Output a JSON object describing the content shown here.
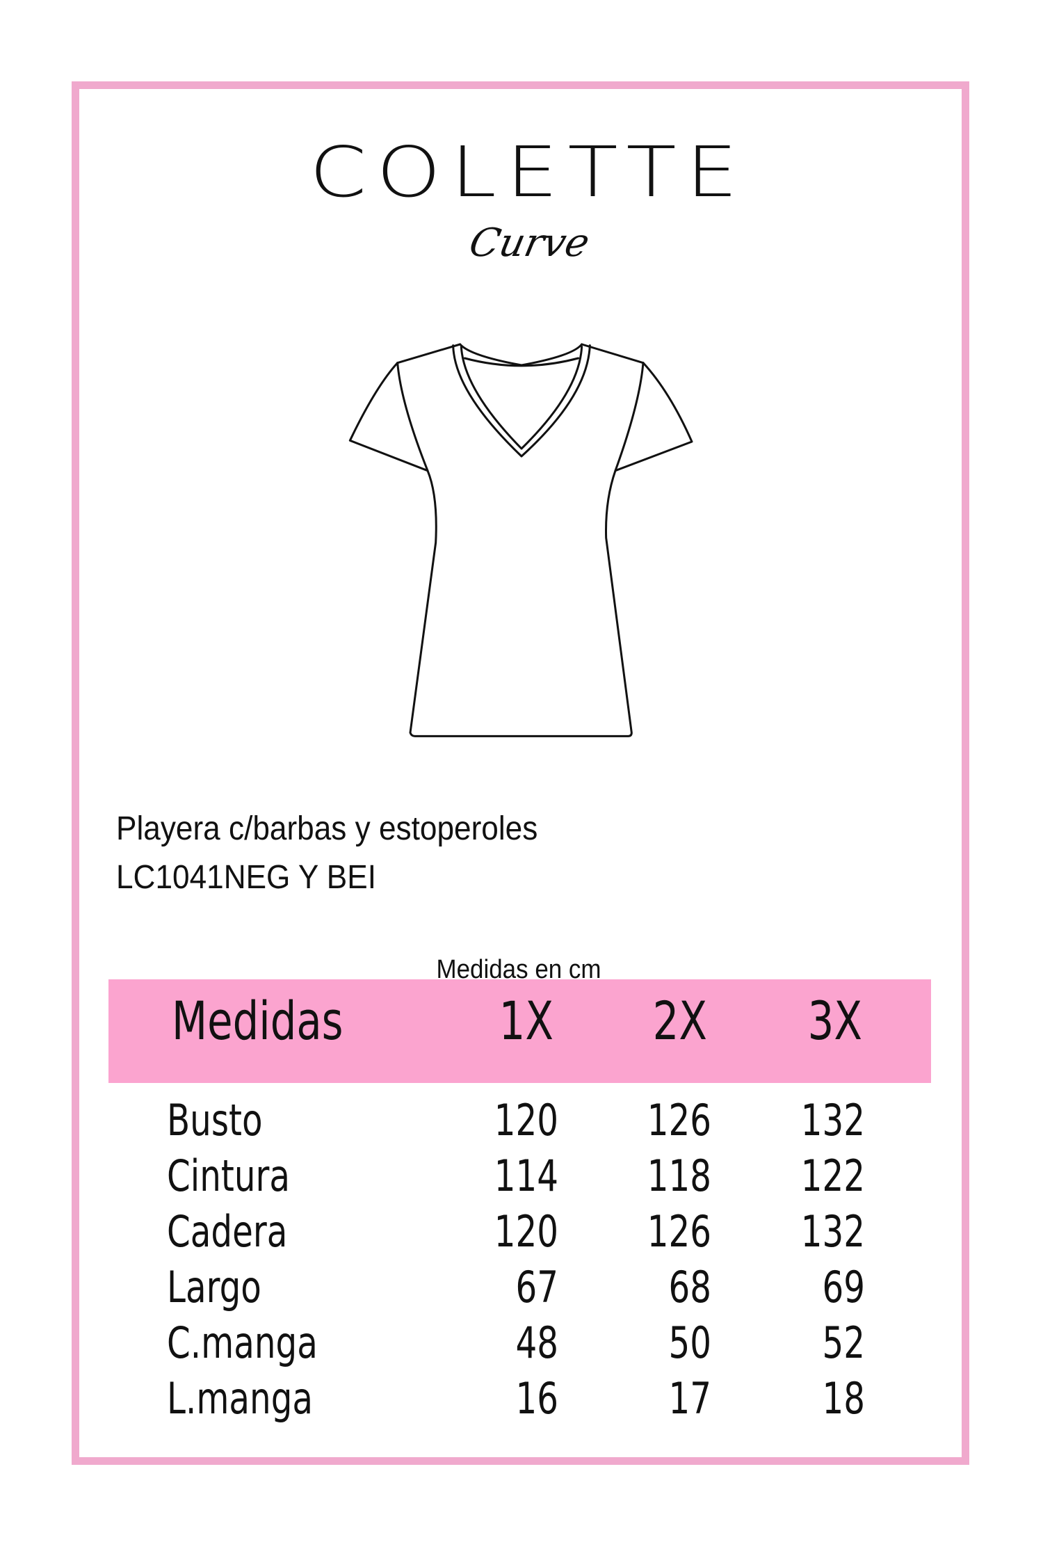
{
  "logo": {
    "brand": "COLETTE",
    "sub": "Curve"
  },
  "product": {
    "name": "Playera c/barbas y estoperoles",
    "code": "LC1041NEG Y BEI"
  },
  "units_note": "Medidas en cm",
  "colors": {
    "frame": "#f0a9cd",
    "header_band": "#fba4cf"
  },
  "table": {
    "header": {
      "label": "Medidas",
      "sizes": [
        "1X",
        "2X",
        "3X"
      ]
    },
    "rows": [
      {
        "label": "Busto",
        "values": [
          "120",
          "126",
          "132"
        ]
      },
      {
        "label": "Cintura",
        "values": [
          "114",
          "118",
          "122"
        ]
      },
      {
        "label": "Cadera",
        "values": [
          "120",
          "126",
          "132"
        ]
      },
      {
        "label": "Largo",
        "values": [
          "67",
          "68",
          "69"
        ]
      },
      {
        "label": "C.manga",
        "values": [
          "48",
          "50",
          "52"
        ]
      },
      {
        "label": "L.manga",
        "values": [
          "16",
          "17",
          "18"
        ]
      }
    ]
  }
}
